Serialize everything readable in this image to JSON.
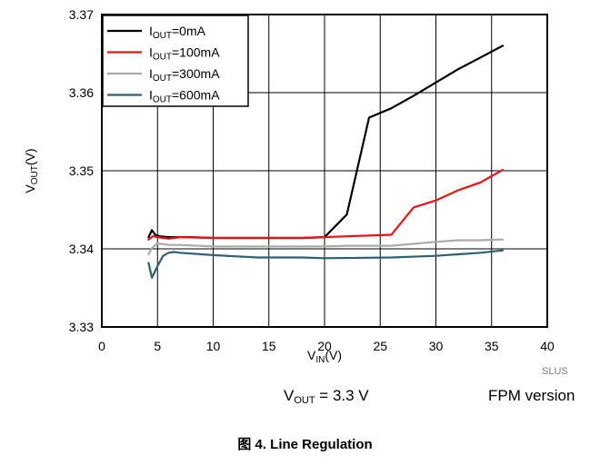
{
  "chart_data": {
    "type": "line",
    "xlabel": {
      "main": "V",
      "sub": "IN",
      "unit": "(V)"
    },
    "ylabel": {
      "main": "V",
      "sub": "OUT",
      "unit": "(V)"
    },
    "xlim": [
      0,
      40
    ],
    "ylim": [
      3.33,
      3.37
    ],
    "xticks": [
      "0",
      "5",
      "10",
      "15",
      "20",
      "25",
      "30",
      "35",
      "40"
    ],
    "yticks": [
      "3.33",
      "3.34",
      "3.35",
      "3.36",
      "3.37"
    ],
    "grid": true,
    "legend_position": "top-left",
    "series": [
      {
        "name_main": "I",
        "name_sub": "OUT",
        "name_rest": "=0mA",
        "color": "#000000",
        "x": [
          4.2,
          4.5,
          4.8,
          5.2,
          6,
          8,
          10,
          14,
          18,
          20,
          22,
          24,
          26,
          28,
          30,
          32,
          34,
          36
        ],
        "y": [
          3.3415,
          3.3424,
          3.3418,
          3.3416,
          3.3415,
          3.3415,
          3.3414,
          3.3414,
          3.3414,
          3.3415,
          3.3444,
          3.3568,
          3.358,
          3.3596,
          3.3613,
          3.363,
          3.3645,
          3.366
        ]
      },
      {
        "name_main": "I",
        "name_sub": "OUT",
        "name_rest": "=100mA",
        "color": "#ee1111",
        "x": [
          4.2,
          4.6,
          5,
          6,
          7,
          10,
          14,
          18,
          20,
          22,
          24,
          26,
          28,
          30,
          32,
          34,
          36
        ],
        "y": [
          3.3412,
          3.3416,
          3.3415,
          3.3413,
          3.3415,
          3.3414,
          3.3414,
          3.3414,
          3.3415,
          3.3416,
          3.3417,
          3.3418,
          3.3453,
          3.3462,
          3.3475,
          3.3485,
          3.3501
        ]
      },
      {
        "name_main": "I",
        "name_sub": "OUT",
        "name_rest": "=300mA",
        "color": "#aaaaaa",
        "x": [
          4.2,
          4.5,
          5,
          5.5,
          6,
          7,
          10,
          14,
          18,
          20,
          22,
          26,
          30,
          32,
          34,
          36
        ],
        "y": [
          3.3393,
          3.3401,
          3.3407,
          3.3406,
          3.3405,
          3.3405,
          3.3403,
          3.3403,
          3.3403,
          3.3403,
          3.3404,
          3.3404,
          3.3409,
          3.3411,
          3.3411,
          3.3412
        ]
      },
      {
        "name_main": "I",
        "name_sub": "OUT",
        "name_rest": "=600mA",
        "color": "#2f5f73",
        "x": [
          4.2,
          4.5,
          5,
          5.5,
          6,
          6.5,
          7,
          10,
          14,
          18,
          20,
          26,
          30,
          34,
          36
        ],
        "y": [
          3.3382,
          3.3363,
          3.3378,
          3.3391,
          3.3395,
          3.3396,
          3.3395,
          3.3392,
          3.3389,
          3.3389,
          3.3388,
          3.3389,
          3.3391,
          3.3395,
          3.3398
        ]
      }
    ]
  },
  "notes": {
    "code": "SLUS",
    "condition": {
      "main": "V",
      "sub": "OUT",
      "rest": " = 3.3 V"
    },
    "version": "FPM version"
  },
  "caption": {
    "figure": "图",
    "text": " 4. Line Regulation"
  }
}
